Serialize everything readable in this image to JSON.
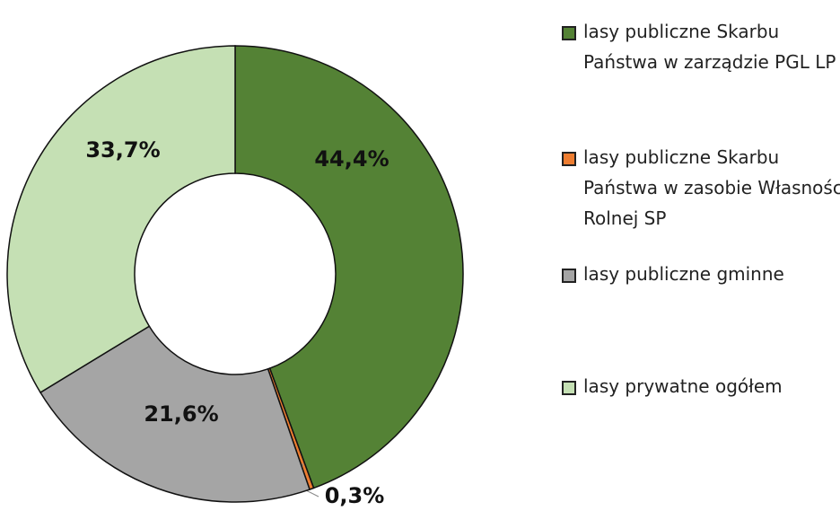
{
  "chart_data": {
    "type": "donut",
    "categories": [
      "lasy publiczne Skarbu Państwa w zarządzie PGL LP",
      "lasy publiczne Skarbu Państwa w zasobie Własności Rolnej SP",
      "lasy publiczne gminne",
      "lasy prywatne ogółem"
    ],
    "values": [
      44.4,
      0.3,
      21.6,
      33.7
    ],
    "value_labels": [
      "44,4%",
      "0,3%",
      "21,6%",
      "33,7%"
    ],
    "colors": [
      "#548235",
      "#ed7d31",
      "#a5a5a5",
      "#c5e0b4"
    ],
    "legend": "right"
  }
}
